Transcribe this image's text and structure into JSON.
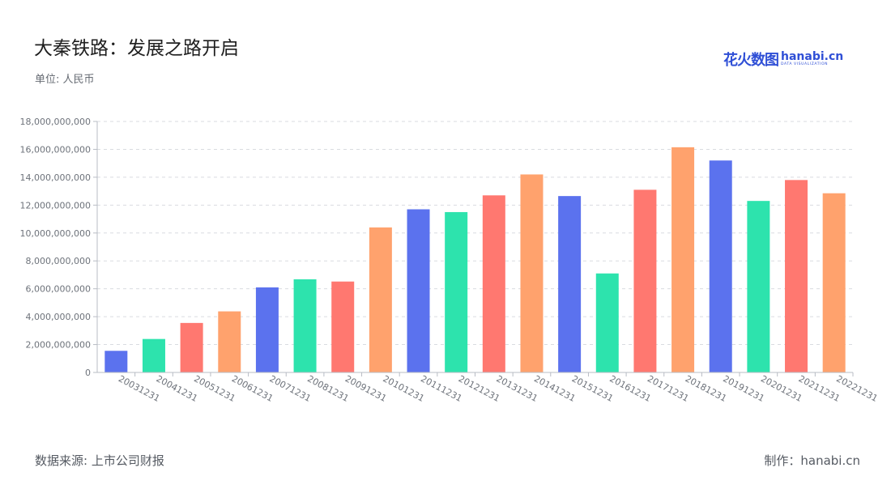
{
  "header": {
    "title": "大秦铁路：发展之路开启",
    "unit": "单位: 人民币"
  },
  "logo": {
    "cn_text": "花火数图",
    "en_text": "hanabi.cn",
    "en_sub": "DATA VISUALIZATION"
  },
  "footer": {
    "source": "数据来源: 上市公司财报",
    "made_by": "制作：hanabi.cn"
  },
  "colors": {
    "palette": [
      "#5b72ee",
      "#2de3ad",
      "#ff7870",
      "#ffa26d"
    ],
    "grid": "#d9dbe0",
    "axis": "#b8bcc4"
  },
  "chart_data": {
    "type": "bar",
    "title": "大秦铁路：发展之路开启",
    "ylim": [
      0,
      18000000000
    ],
    "y_ticks": [
      "0",
      "2,000,000,000",
      "4,000,000,000",
      "6,000,000,000",
      "8,000,000,000",
      "10,000,000,000",
      "12,000,000,000",
      "14,000,000,000",
      "16,000,000,000",
      "18,000,000,000"
    ],
    "grid": true,
    "categories": [
      "20031231",
      "20041231",
      "20051231",
      "20061231",
      "20071231",
      "20081231",
      "20091231",
      "20101231",
      "20111231",
      "20121231",
      "20131231",
      "20141231",
      "20151231",
      "20161231",
      "20171231",
      "20181231",
      "20191231",
      "20201231",
      "20211231",
      "20221231"
    ],
    "values": [
      1550000000,
      2400000000,
      3550000000,
      4380000000,
      6100000000,
      6680000000,
      6520000000,
      10400000000,
      11700000000,
      11500000000,
      12700000000,
      14200000000,
      12650000000,
      7100000000,
      13100000000,
      16150000000,
      15200000000,
      12300000000,
      13800000000,
      12850000000
    ],
    "bar_colors": [
      "#5b72ee",
      "#2de3ad",
      "#ff7870",
      "#ffa26d",
      "#5b72ee",
      "#2de3ad",
      "#ff7870",
      "#ffa26d",
      "#5b72ee",
      "#2de3ad",
      "#ff7870",
      "#ffa26d",
      "#5b72ee",
      "#2de3ad",
      "#ff7870",
      "#ffa26d",
      "#5b72ee",
      "#2de3ad",
      "#ff7870",
      "#ffa26d"
    ]
  }
}
